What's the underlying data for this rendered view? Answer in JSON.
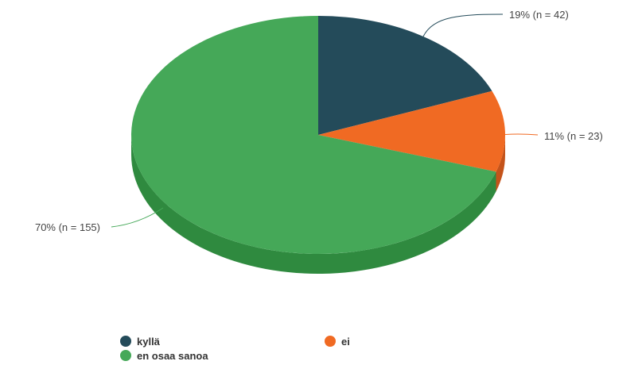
{
  "chart_data": {
    "type": "pie",
    "style": "3d",
    "slices": [
      {
        "label": "kyllä",
        "percent": 19,
        "n": 42,
        "value_label": "19% (n = 42)",
        "color": "#244b5a",
        "side_color": "#1a3642"
      },
      {
        "label": "ei",
        "percent": 11,
        "n": 23,
        "value_label": "11% (n = 23)",
        "color": "#f06a23",
        "side_color": "#c4531a"
      },
      {
        "label": "en osaa sanoa",
        "percent": 70,
        "n": 155,
        "value_label": "70% (n = 155)",
        "color": "#45a858",
        "side_color": "#2f8a3f"
      }
    ],
    "legend_position": "bottom"
  }
}
